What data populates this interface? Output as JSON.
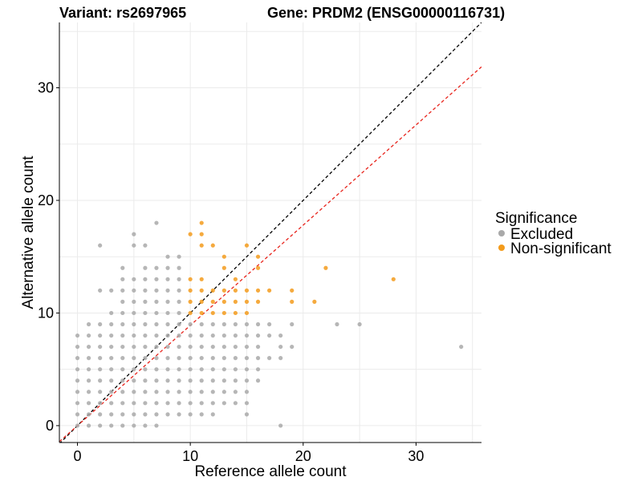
{
  "chart_data": {
    "type": "scatter",
    "title_left": "Variant: rs2697965",
    "title_right": "Gene: PRDM2 (ENSG00000116731)",
    "xlabel": "Reference allele count",
    "ylabel": "Alternative allele count",
    "xlim": [
      -1.6,
      35.8
    ],
    "ylim": [
      -1.5,
      35.8
    ],
    "x_ticks": [
      0,
      10,
      20,
      30
    ],
    "y_ticks": [
      0,
      10,
      20,
      30
    ],
    "x_tick_labels": [
      "0",
      "10",
      "20",
      "30"
    ],
    "y_tick_labels": [
      "0",
      "10",
      "20",
      "30"
    ],
    "grid": true,
    "legend": {
      "title": "Significance",
      "position": "right",
      "entries": [
        {
          "label": "Excluded",
          "color": "#a9a9a9"
        },
        {
          "label": "Non-significant",
          "color": "#f39b1c"
        }
      ]
    },
    "reference_lines": [
      {
        "slope": 1.0,
        "intercept": 0,
        "color": "#000000",
        "style": "dashed"
      },
      {
        "slope": 0.89,
        "intercept": 0,
        "color": "#e8231b",
        "style": "dashed"
      }
    ],
    "series": [
      {
        "name": "Excluded",
        "color": "#a9a9a9",
        "points": [
          [
            0,
            0
          ],
          [
            0,
            1
          ],
          [
            0,
            2
          ],
          [
            0,
            3
          ],
          [
            0,
            4
          ],
          [
            0,
            5
          ],
          [
            0,
            6
          ],
          [
            0,
            7
          ],
          [
            0,
            8
          ],
          [
            1,
            0
          ],
          [
            1,
            1
          ],
          [
            1,
            2
          ],
          [
            1,
            3
          ],
          [
            1,
            4
          ],
          [
            1,
            5
          ],
          [
            1,
            6
          ],
          [
            1,
            7
          ],
          [
            1,
            8
          ],
          [
            1,
            9
          ],
          [
            2,
            0
          ],
          [
            2,
            1
          ],
          [
            2,
            2
          ],
          [
            2,
            3
          ],
          [
            2,
            4
          ],
          [
            2,
            5
          ],
          [
            2,
            6
          ],
          [
            2,
            7
          ],
          [
            2,
            8
          ],
          [
            2,
            9
          ],
          [
            2,
            12
          ],
          [
            2,
            16
          ],
          [
            3,
            0
          ],
          [
            3,
            1
          ],
          [
            3,
            2
          ],
          [
            3,
            3
          ],
          [
            3,
            4
          ],
          [
            3,
            5
          ],
          [
            3,
            6
          ],
          [
            3,
            7
          ],
          [
            3,
            8
          ],
          [
            3,
            9
          ],
          [
            3,
            10
          ],
          [
            3,
            12
          ],
          [
            4,
            0
          ],
          [
            4,
            1
          ],
          [
            4,
            2
          ],
          [
            4,
            3
          ],
          [
            4,
            4
          ],
          [
            4,
            5
          ],
          [
            4,
            6
          ],
          [
            4,
            7
          ],
          [
            4,
            8
          ],
          [
            4,
            9
          ],
          [
            4,
            10
          ],
          [
            4,
            11
          ],
          [
            4,
            12
          ],
          [
            4,
            13
          ],
          [
            4,
            14
          ],
          [
            5,
            0
          ],
          [
            5,
            1
          ],
          [
            5,
            2
          ],
          [
            5,
            3
          ],
          [
            5,
            4
          ],
          [
            5,
            5
          ],
          [
            5,
            6
          ],
          [
            5,
            7
          ],
          [
            5,
            8
          ],
          [
            5,
            9
          ],
          [
            5,
            10
          ],
          [
            5,
            11
          ],
          [
            5,
            12
          ],
          [
            5,
            13
          ],
          [
            5,
            16
          ],
          [
            5,
            17
          ],
          [
            6,
            0
          ],
          [
            6,
            1
          ],
          [
            6,
            2
          ],
          [
            6,
            3
          ],
          [
            6,
            4
          ],
          [
            6,
            5
          ],
          [
            6,
            6
          ],
          [
            6,
            7
          ],
          [
            6,
            8
          ],
          [
            6,
            9
          ],
          [
            6,
            10
          ],
          [
            6,
            11
          ],
          [
            6,
            12
          ],
          [
            6,
            13
          ],
          [
            6,
            14
          ],
          [
            6,
            16
          ],
          [
            7,
            0
          ],
          [
            7,
            1
          ],
          [
            7,
            2
          ],
          [
            7,
            3
          ],
          [
            7,
            4
          ],
          [
            7,
            5
          ],
          [
            7,
            6
          ],
          [
            7,
            7
          ],
          [
            7,
            8
          ],
          [
            7,
            9
          ],
          [
            7,
            10
          ],
          [
            7,
            11
          ],
          [
            7,
            12
          ],
          [
            7,
            13
          ],
          [
            7,
            14
          ],
          [
            7,
            18
          ],
          [
            8,
            1
          ],
          [
            8,
            2
          ],
          [
            8,
            3
          ],
          [
            8,
            4
          ],
          [
            8,
            5
          ],
          [
            8,
            6
          ],
          [
            8,
            7
          ],
          [
            8,
            8
          ],
          [
            8,
            9
          ],
          [
            8,
            10
          ],
          [
            8,
            11
          ],
          [
            8,
            12
          ],
          [
            8,
            13
          ],
          [
            8,
            14
          ],
          [
            8,
            15
          ],
          [
            9,
            1
          ],
          [
            9,
            2
          ],
          [
            9,
            3
          ],
          [
            9,
            4
          ],
          [
            9,
            5
          ],
          [
            9,
            6
          ],
          [
            9,
            7
          ],
          [
            9,
            8
          ],
          [
            9,
            9
          ],
          [
            9,
            10
          ],
          [
            9,
            11
          ],
          [
            9,
            12
          ],
          [
            9,
            13
          ],
          [
            9,
            14
          ],
          [
            9,
            15
          ],
          [
            10,
            1
          ],
          [
            10,
            2
          ],
          [
            10,
            3
          ],
          [
            10,
            4
          ],
          [
            10,
            5
          ],
          [
            10,
            6
          ],
          [
            10,
            7
          ],
          [
            10,
            8
          ],
          [
            10,
            9
          ],
          [
            11,
            1
          ],
          [
            11,
            2
          ],
          [
            11,
            3
          ],
          [
            11,
            4
          ],
          [
            11,
            5
          ],
          [
            11,
            6
          ],
          [
            11,
            7
          ],
          [
            11,
            8
          ],
          [
            11,
            9
          ],
          [
            12,
            1
          ],
          [
            12,
            2
          ],
          [
            12,
            3
          ],
          [
            12,
            4
          ],
          [
            12,
            5
          ],
          [
            12,
            6
          ],
          [
            12,
            7
          ],
          [
            12,
            8
          ],
          [
            12,
            9
          ],
          [
            13,
            2
          ],
          [
            13,
            3
          ],
          [
            13,
            4
          ],
          [
            13,
            5
          ],
          [
            13,
            6
          ],
          [
            13,
            7
          ],
          [
            13,
            8
          ],
          [
            13,
            9
          ],
          [
            14,
            2
          ],
          [
            14,
            3
          ],
          [
            14,
            4
          ],
          [
            14,
            5
          ],
          [
            14,
            6
          ],
          [
            14,
            7
          ],
          [
            14,
            8
          ],
          [
            14,
            9
          ],
          [
            15,
            2
          ],
          [
            15,
            3
          ],
          [
            15,
            4
          ],
          [
            15,
            5
          ],
          [
            15,
            6
          ],
          [
            15,
            7
          ],
          [
            15,
            8
          ],
          [
            15,
            9
          ],
          [
            15,
            1
          ],
          [
            16,
            4
          ],
          [
            16,
            5
          ],
          [
            16,
            6
          ],
          [
            16,
            7
          ],
          [
            16,
            8
          ],
          [
            16,
            9
          ],
          [
            17,
            8
          ],
          [
            17,
            9
          ],
          [
            17,
            6
          ],
          [
            18,
            0
          ],
          [
            18,
            6
          ],
          [
            18,
            7
          ],
          [
            18,
            8
          ],
          [
            19,
            7
          ],
          [
            19,
            9
          ],
          [
            23,
            9
          ],
          [
            25,
            9
          ],
          [
            34,
            7
          ]
        ]
      },
      {
        "name": "Non-significant",
        "color": "#f39b1c",
        "points": [
          [
            10,
            10
          ],
          [
            10,
            11
          ],
          [
            10,
            12
          ],
          [
            10,
            13
          ],
          [
            10,
            17
          ],
          [
            11,
            10
          ],
          [
            11,
            11
          ],
          [
            11,
            12
          ],
          [
            11,
            13
          ],
          [
            11,
            16
          ],
          [
            11,
            17
          ],
          [
            11,
            18
          ],
          [
            12,
            10
          ],
          [
            12,
            11
          ],
          [
            12,
            12
          ],
          [
            12,
            16
          ],
          [
            13,
            10
          ],
          [
            13,
            11
          ],
          [
            13,
            12
          ],
          [
            13,
            14
          ],
          [
            13,
            15
          ],
          [
            14,
            10
          ],
          [
            14,
            11
          ],
          [
            14,
            12
          ],
          [
            14,
            13
          ],
          [
            15,
            10
          ],
          [
            15,
            11
          ],
          [
            15,
            12
          ],
          [
            15,
            16
          ],
          [
            16,
            11
          ],
          [
            16,
            12
          ],
          [
            16,
            14
          ],
          [
            16,
            15
          ],
          [
            17,
            12
          ],
          [
            19,
            11
          ],
          [
            19,
            12
          ],
          [
            21,
            11
          ],
          [
            22,
            14
          ],
          [
            28,
            13
          ]
        ]
      }
    ]
  }
}
